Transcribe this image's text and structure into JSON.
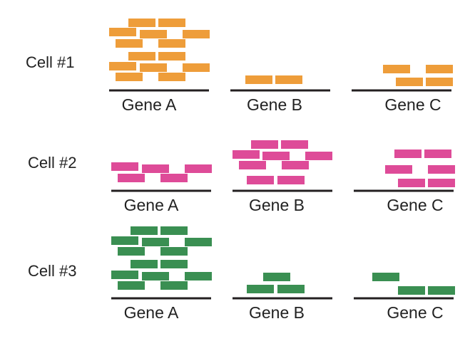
{
  "colors": {
    "cell_1": "#EE9D3A",
    "cell_2": "#DE4B98",
    "cell_3": "#3A8F52",
    "baseline": "#231F20"
  },
  "rows": [
    {
      "cell_label": "Cell #1",
      "color_key": "cell_1",
      "genes": [
        {
          "label": "Gene A",
          "transcript_count": 14
        },
        {
          "label": "Gene B",
          "transcript_count": 2
        },
        {
          "label": "Gene C",
          "transcript_count": 4
        }
      ]
    },
    {
      "cell_label": "Cell #2",
      "color_key": "cell_2",
      "genes": [
        {
          "label": "Gene A",
          "transcript_count": 5
        },
        {
          "label": "Gene B",
          "transcript_count": 10
        },
        {
          "label": "Gene C",
          "transcript_count": 6
        }
      ]
    },
    {
      "cell_label": "Cell #3",
      "color_key": "cell_3",
      "genes": [
        {
          "label": "Gene A",
          "transcript_count": 14
        },
        {
          "label": "Gene B",
          "transcript_count": 3
        },
        {
          "label": "Gene C",
          "transcript_count": 3
        }
      ]
    }
  ]
}
